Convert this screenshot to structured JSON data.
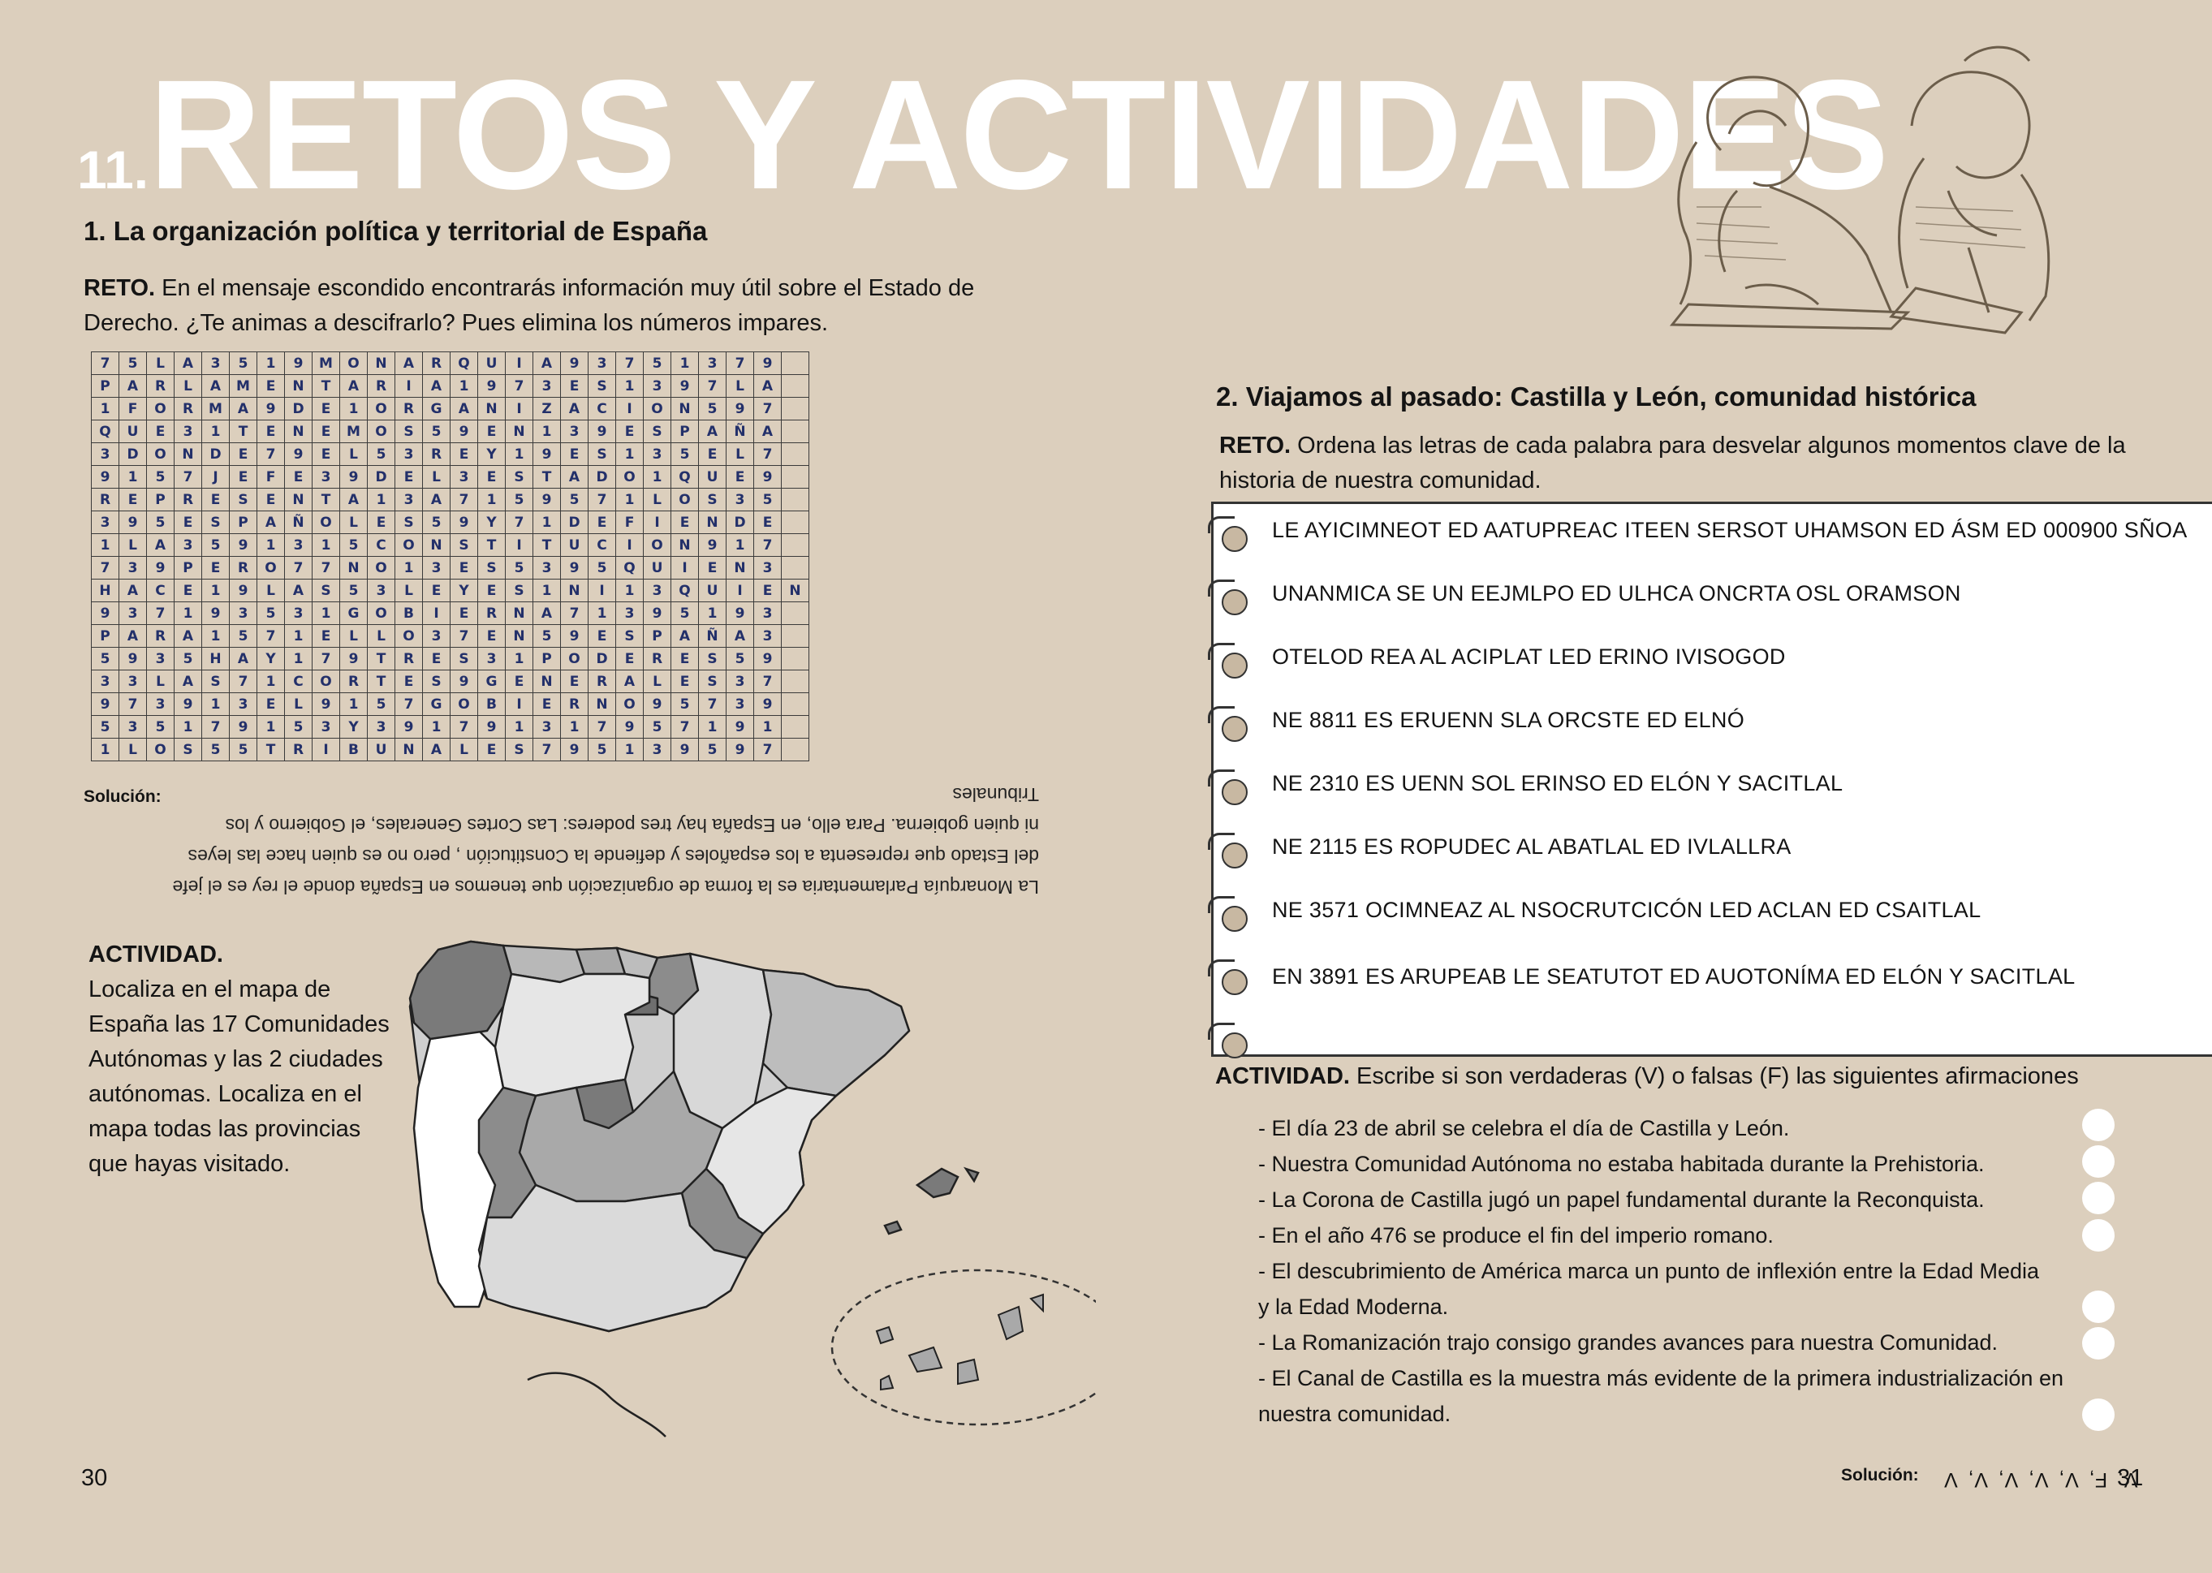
{
  "page": {
    "number_left": "30",
    "number_right": "31"
  },
  "title": {
    "number": "11.",
    "text": "RETOS Y ACTIVIDADES"
  },
  "section1": {
    "heading": "1. La organización política y territorial de España",
    "reto_label": "RETO.",
    "reto_text": " En el mensaje escondido encontrarás información muy útil sobre el Estado de",
    "reto_text2": "Derecho. ¿Te animas a descifrarlo? Pues elimina los números impares.",
    "grid": [
      "75LA3519MONARQUIA9375137 9",
      "PARLAMENTARIA1973ES13 97LA",
      "1FORMA9DE1ORGANIZACION597",
      "QUE31TENEMOS59EN139ESPAÑA",
      "3DONDE79EL53REY19ES135EL7",
      "9157JEFE39DEL3ESTADO1QUE9",
      "REPRESENTA13A7159571LOS35",
      "395ESPAÑOLES59Y71DEFIENDE",
      "1LA359131 5CONSTITUCION917",
      "739PERO77NO13ES5395QUIEN3",
      "HACE19LAS53LEYES1NI13QUIEN",
      "93719353 1GOBIERNA7139 5193",
      "PARA15 71ELLO37EN59ESPAÑA3",
      "5935HAY179TRES31PODERES59",
      "33LAS71CORTES9GENERALES37",
      "97391 3EL9157GOBIERNO95739",
      "5351791 53Y391791 31795719 1",
      "1LOS55TRIBUNALES795139597"
    ],
    "solution_label": "Solución:",
    "solution_text": "La Monarquía Parlamentaria es la forma de organización que tenemos en España donde el rey es el jefe del Estado que representa a los españoles y defiende la Constitución , pero no es quien hace las leyes ni quien gobierna. Para ello, en España hay tres poderes: Las Cortes Generales, el Gobierno y los Tribunales"
  },
  "activity1": {
    "label": "ACTIVIDAD.",
    "lines": [
      "Localiza en el mapa de",
      "España las 17 Comunidades",
      "Autónomas y las 2 ciudades",
      "autónomas. Localiza en el",
      "mapa todas las provincias",
      "que hayas visitado."
    ]
  },
  "section2": {
    "heading": "2. Viajamos al pasado: Castilla y León, comunidad histórica",
    "reto_label": "RETO.",
    "reto_text": " Ordena las letras de cada palabra para desvelar algunos momentos clave de la",
    "reto_text2": "historia de nuestra comunidad.",
    "puzzles": [
      "LE AYICIMNEOT ED AATUPREAC ITEEN SERSOT UHAMSON ED  ÁSM ED 000900 SÑOA",
      "UNANMICA SE UN EEJMLPO ED ULHCA ONCRTA OSL ORAMSON",
      "OTELOD REA AL ACIPLAT LED ERINO IVISOGOD",
      "NE 8811 ES ERUENN SLA ORCSTE ED ELNÓ",
      "NE 2310 ES UENN SOL ERINSO ED ELÓN Y SACITLAL",
      "NE 2115 ES ROPUDEC AL ABATLAL ED IVLALLRA",
      "NE 3571 OCIMNEAZ AL NSOCRUTCICÓN LED ACLAN ED CSAITLAL",
      "EN 3891 ES ARUPEAB LE SEATUTOT ED AUOTONÍMA ED ELÓN Y SACITLAL"
    ]
  },
  "activity2": {
    "label": "ACTIVIDAD.",
    "text": " Escribe si son verdaderas (V) o falsas (F) las siguientes afirmaciones",
    "statements": [
      "- El día 23 de abril se celebra el día de Castilla y León.",
      "- Nuestra Comunidad Autónoma no estaba habitada durante la Prehistoria.",
      "- La Corona de Castilla jugó un papel fundamental durante la Reconquista.",
      "- En el año 476 se produce el fin del imperio romano.",
      "- El descubrimiento de América marca un punto de inflexión entre la Edad Media",
      "y la Edad Moderna.",
      "- La Romanización trajo consigo grandes avances para nuestra Comunidad.",
      "- El Canal de Castilla es la muestra más evidente de la primera industrialización en",
      "nuestra comunidad."
    ],
    "solution_label": "Solución:",
    "solution_text": "V, F, V, V, V, V, V"
  },
  "colors": {
    "background": "#dccfbd",
    "title": "#ffffff",
    "grid_letters": "#23306a",
    "map_dark": "#7a7a7a",
    "map_mid": "#a9a9a9",
    "map_light": "#cfcfcf"
  }
}
